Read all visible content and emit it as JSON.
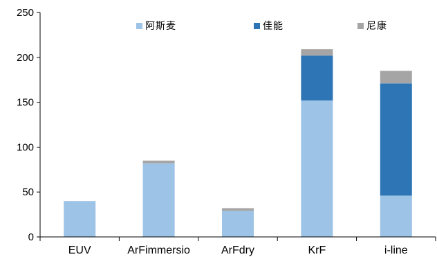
{
  "chart_data": {
    "type": "bar",
    "stacked": true,
    "title": "",
    "xlabel": "",
    "ylabel": "",
    "categories": [
      "EUV",
      "ArFimmersio",
      "ArFdry",
      "KrF",
      "i-line"
    ],
    "series": [
      {
        "name": "阿斯麦",
        "color": "#9dc3e6",
        "values": [
          40,
          82,
          29,
          152,
          46
        ]
      },
      {
        "name": "佳能",
        "color": "#2e75b6",
        "values": [
          0,
          0,
          0,
          50,
          125
        ]
      },
      {
        "name": "尼康",
        "color": "#a5a5a5",
        "values": [
          0,
          3,
          3,
          7,
          14
        ]
      }
    ],
    "ylim": [
      0,
      250
    ],
    "yticks": [
      0,
      50,
      100,
      150,
      200,
      250
    ],
    "grid": false,
    "legend": "top-center"
  }
}
